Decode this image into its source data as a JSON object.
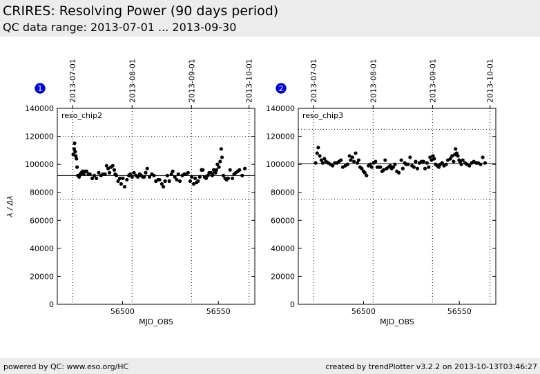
{
  "header": {
    "title": "CRIRES: Resolving Power (90 days period)",
    "subtitle": "QC data range: 2013-07-01 ... 2013-09-30"
  },
  "footer": {
    "left": "powered by QC: www.eso.org/HC",
    "right": "created by trendPlotter v3.2.2 on 2013-10-13T03:46:27"
  },
  "colors": {
    "marker": "#000000",
    "badge": "#0000ee",
    "band": "#ececec"
  },
  "chart_data": [
    {
      "type": "scatter",
      "badge": "1",
      "panel_label": "reso_chip2",
      "xlabel": "MJD_OBS",
      "ylabel": "λ / Δλ",
      "xlim": [
        56466,
        56569
      ],
      "ylim": [
        0,
        140000
      ],
      "xticks": [
        56500,
        56550
      ],
      "yticks": [
        0,
        20000,
        40000,
        60000,
        80000,
        100000,
        120000,
        140000
      ],
      "date_ticks": [
        {
          "label": "2013-07-01",
          "mjd": 56474
        },
        {
          "label": "2013-08-01",
          "mjd": 56505
        },
        {
          "label": "2013-09-01",
          "mjd": 56536
        },
        {
          "label": "2013-10-01",
          "mjd": 56566
        }
      ],
      "reference_line": 92000,
      "threshold_lines": [
        75000,
        120000
      ],
      "grid": false,
      "x": [
        56474.3,
        56474.8,
        56475.0,
        56475.3,
        56475.6,
        56476.0,
        56476.3,
        56476.7,
        56477.4,
        56478.0,
        56478.5,
        56479.2,
        56479.8,
        56480.5,
        56481.3,
        56482.2,
        56483.0,
        56484.2,
        56485.3,
        56486.4,
        56487.6,
        56488.8,
        56489.8,
        56490.9,
        56491.7,
        56492.5,
        56493.2,
        56494.0,
        56494.9,
        56495.7,
        56496.2,
        56496.8,
        56497.7,
        56498.6,
        56499.3,
        56500.2,
        56501.1,
        56502.3,
        56503.3,
        56504.1,
        56505.0,
        56506.0,
        56507.1,
        56508.0,
        56509.0,
        56509.8,
        56510.6,
        56511.3,
        56512.1,
        56512.9,
        56514.1,
        56515.3,
        56516.4,
        56517.4,
        56518.6,
        56519.3,
        56520.5,
        56521.3,
        56522.2,
        56523.4,
        56524.4,
        56525.5,
        56526.2,
        56527.3,
        56528.3,
        56529.1,
        56529.9,
        56531.2,
        56532.2,
        56533.1,
        56534.2,
        56535.3,
        56536.1,
        56537.1,
        56537.9,
        56538.6,
        56539.4,
        56540.3,
        56541.2,
        56541.9,
        56542.8,
        56543.6,
        56544.5,
        56545.2,
        56546.1,
        56546.8,
        56547.6,
        56547.9,
        56548.5,
        56549.0,
        56549.5,
        56550.3,
        56550.9,
        56551.5,
        56551.9,
        56552.6,
        56553.5,
        56554.3,
        56555.1,
        56556.1,
        56557.3,
        56558.2,
        56559.1,
        56560.1,
        56561.0,
        56562.4,
        56563.8
      ],
      "y": [
        107000,
        111000,
        115000,
        109000,
        106000,
        104000,
        98000,
        92000,
        91000,
        93000,
        94000,
        95000,
        93000,
        95000,
        95000,
        93000,
        93000,
        90000,
        92000,
        90000,
        94000,
        92000,
        93000,
        93000,
        99000,
        97000,
        94000,
        98000,
        99000,
        96000,
        93000,
        92000,
        88000,
        90000,
        86000,
        90000,
        84000,
        89000,
        92000,
        93000,
        91000,
        94000,
        92000,
        91000,
        93000,
        92000,
        91000,
        91000,
        94000,
        97000,
        91000,
        93000,
        92000,
        88000,
        89000,
        89000,
        86000,
        84000,
        88000,
        92000,
        88000,
        93000,
        95000,
        91000,
        89000,
        93000,
        88000,
        92000,
        93000,
        93000,
        94000,
        88000,
        91000,
        86000,
        90000,
        87000,
        88000,
        91000,
        96000,
        96000,
        91000,
        90000,
        92000,
        94000,
        94000,
        92000,
        96000,
        94000,
        94000,
        96000,
        100000,
        98000,
        102000,
        111000,
        105000,
        92000,
        90000,
        89000,
        90000,
        96000,
        90000,
        93000,
        94000,
        95000,
        96000,
        92000,
        97000
      ]
    },
    {
      "type": "scatter",
      "badge": "2",
      "panel_label": "reso_chip3",
      "xlabel": "MJD_OBS",
      "ylabel": "",
      "xlim": [
        56466,
        56569
      ],
      "ylim": [
        0,
        140000
      ],
      "xticks": [
        56500,
        56550
      ],
      "yticks": [
        0,
        20000,
        40000,
        60000,
        80000,
        100000,
        120000,
        140000
      ],
      "date_ticks": [
        {
          "label": "2013-07-01",
          "mjd": 56474
        },
        {
          "label": "2013-08-01",
          "mjd": 56505
        },
        {
          "label": "2013-09-01",
          "mjd": 56536
        },
        {
          "label": "2013-10-01",
          "mjd": 56566
        }
      ],
      "reference_line": 100500,
      "threshold_lines": [
        75000,
        125000
      ],
      "grid": false,
      "x": [
        56475.0,
        56475.8,
        56476.4,
        56477.2,
        56478.0,
        56478.8,
        56479.6,
        56480.5,
        56481.6,
        56482.8,
        56483.9,
        56485.1,
        56486.2,
        56487.2,
        56488.2,
        56489.2,
        56490.5,
        56491.7,
        56492.7,
        56493.3,
        56494.2,
        56495.0,
        56495.9,
        56496.8,
        56497.5,
        56498.2,
        56499.1,
        56500.0,
        56500.7,
        56501.6,
        56502.6,
        56503.5,
        56504.3,
        56505.3,
        56506.3,
        56507.2,
        56508.0,
        56508.8,
        56509.7,
        56510.5,
        56511.3,
        56512.1,
        56513.0,
        56513.9,
        56514.7,
        56515.5,
        56516.4,
        56517.4,
        56518.4,
        56519.7,
        56520.5,
        56521.5,
        56522.3,
        56523.2,
        56524.3,
        56525.3,
        56526.3,
        56527.2,
        56528.1,
        56529.2,
        56530.3,
        56531.3,
        56532.1,
        56533.1,
        56534.0,
        56534.7,
        56535.5,
        56536.2,
        56536.9,
        56537.6,
        56538.4,
        56539.3,
        56540.1,
        56541.0,
        56542.0,
        56543.1,
        56544.0,
        56545.3,
        56546.2,
        56547.0,
        56547.6,
        56548.0,
        56548.6,
        56549.2,
        56549.9,
        56550.4,
        56551.0,
        56551.8,
        56553.0,
        56554.0,
        56555.2,
        56556.4,
        56557.5,
        56558.8,
        56559.8,
        56561.1,
        56562.2,
        56563.4
      ],
      "y": [
        101000,
        108000,
        112000,
        106000,
        103000,
        101000,
        104000,
        102000,
        101000,
        100000,
        99000,
        101000,
        101000,
        102000,
        103000,
        98000,
        99000,
        100000,
        106000,
        103000,
        105000,
        102000,
        108000,
        101000,
        103000,
        98000,
        97000,
        95000,
        94000,
        92000,
        99000,
        100000,
        98000,
        101000,
        102000,
        98000,
        98000,
        98000,
        95000,
        96000,
        103000,
        97000,
        98000,
        99000,
        97000,
        98000,
        100000,
        95000,
        94000,
        103000,
        97000,
        101000,
        100000,
        100000,
        105000,
        99000,
        98000,
        102000,
        97000,
        101000,
        102000,
        102000,
        97000,
        101000,
        98000,
        105000,
        103000,
        106000,
        104000,
        100000,
        99000,
        98000,
        100000,
        101000,
        99000,
        100000,
        103000,
        104000,
        106000,
        102000,
        107000,
        111000,
        108000,
        106000,
        103000,
        102000,
        100000,
        103000,
        101000,
        100000,
        99000,
        101000,
        102000,
        101000,
        101000,
        100000,
        105000,
        101000
      ]
    }
  ]
}
